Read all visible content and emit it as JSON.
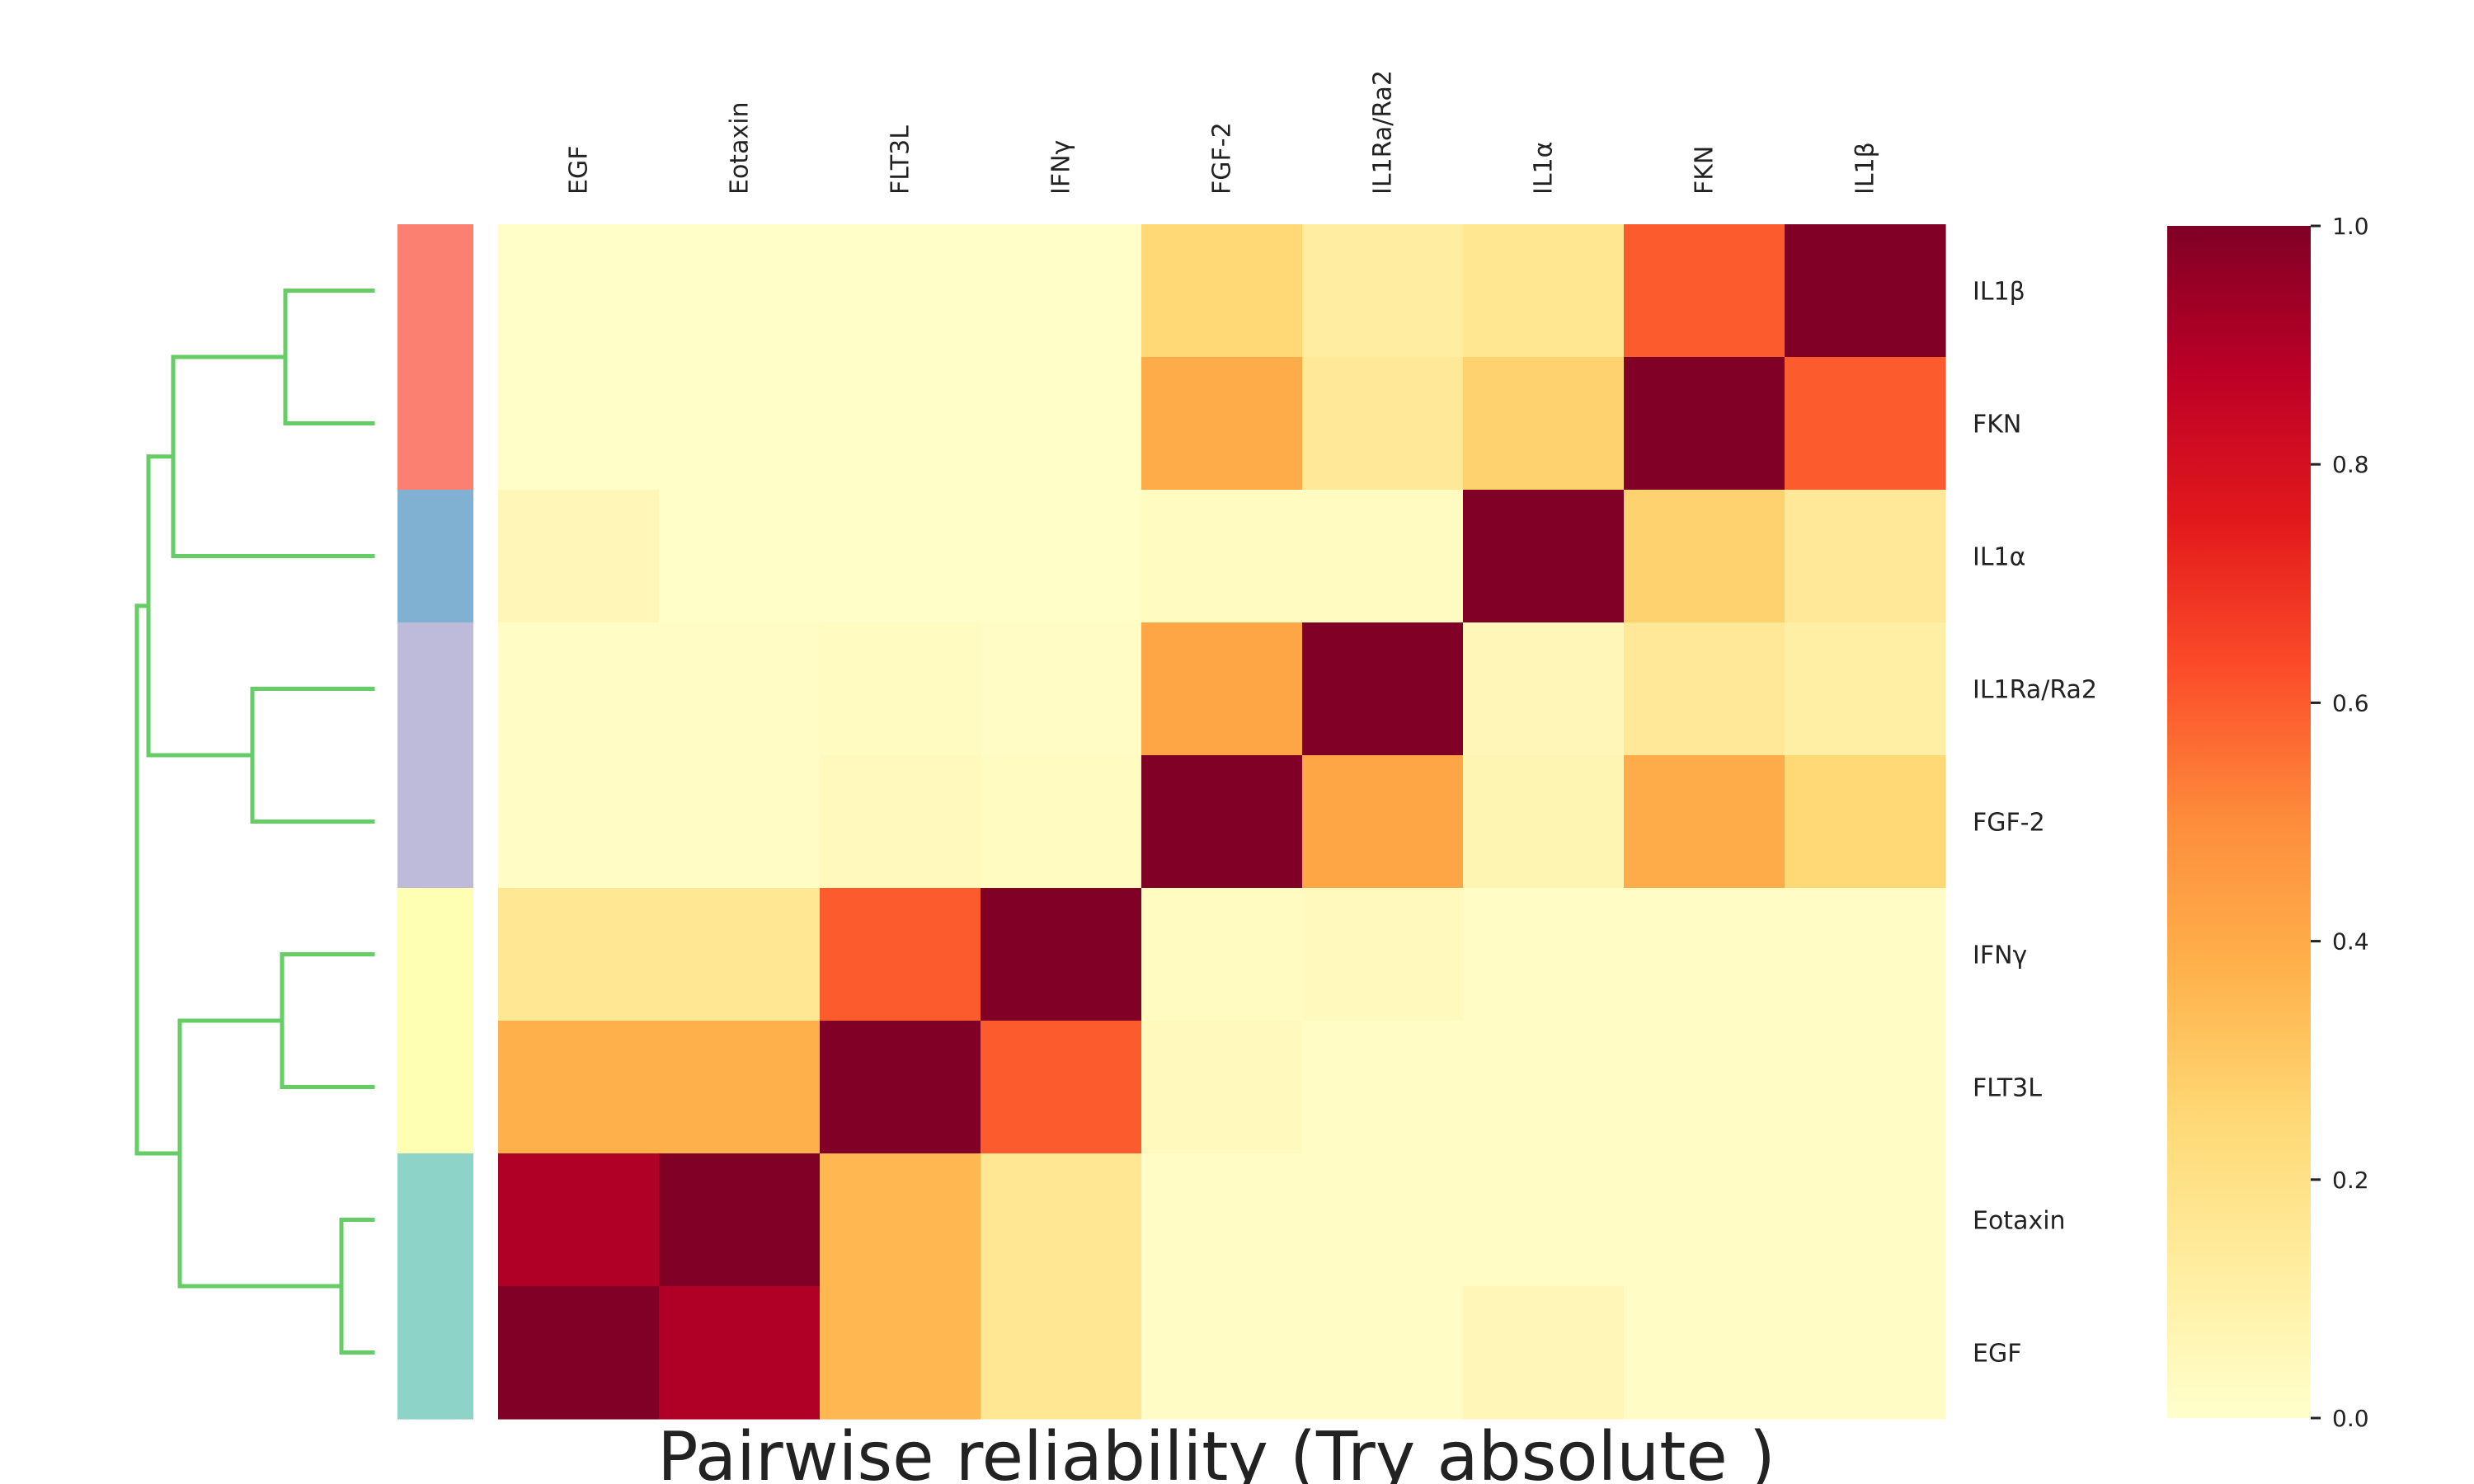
{
  "chart_data": {
    "type": "heatmap",
    "title": "Pairwise reliability (Try  absolute )",
    "columns": [
      "EGF",
      "Eotaxin",
      "FLT3L",
      "IFNγ",
      "FGF-2",
      "IL1Ra/Ra2",
      "IL1α",
      "FKN",
      "IL1β"
    ],
    "rows": [
      "IL1β",
      "FKN",
      "IL1α",
      "IL1Ra/Ra2",
      "FGF-2",
      "IFNγ",
      "FLT3L",
      "Eotaxin",
      "EGF"
    ],
    "values": [
      [
        0.01,
        0.01,
        0.01,
        0.01,
        0.25,
        0.12,
        0.17,
        0.6,
        1.0
      ],
      [
        0.01,
        0.01,
        0.01,
        0.01,
        0.4,
        0.15,
        0.27,
        1.0,
        0.6
      ],
      [
        0.06,
        0.01,
        0.01,
        0.01,
        0.03,
        0.03,
        1.0,
        0.27,
        0.15
      ],
      [
        0.02,
        0.02,
        0.03,
        0.02,
        0.42,
        1.0,
        0.06,
        0.15,
        0.11
      ],
      [
        0.02,
        0.02,
        0.04,
        0.03,
        1.0,
        0.42,
        0.07,
        0.4,
        0.25
      ],
      [
        0.16,
        0.16,
        0.6,
        1.0,
        0.03,
        0.04,
        0.02,
        0.02,
        0.02
      ],
      [
        0.38,
        0.38,
        1.0,
        0.6,
        0.04,
        0.02,
        0.02,
        0.02,
        0.02
      ],
      [
        0.9,
        1.0,
        0.36,
        0.16,
        0.02,
        0.02,
        0.02,
        0.02,
        0.02
      ],
      [
        1.0,
        0.9,
        0.36,
        0.16,
        0.02,
        0.02,
        0.06,
        0.02,
        0.02
      ]
    ],
    "row_group_colors": [
      "#fb8072",
      "#fb8072",
      "#80b1d3",
      "#bebada",
      "#bebada",
      "#ffffb3",
      "#ffffb3",
      "#8dd3c7",
      "#8dd3c7"
    ],
    "colormap": "YlOrRd",
    "colorbar": {
      "vmin": 0.0,
      "vmax": 1.0,
      "ticks": [
        "0.0",
        "0.2",
        "0.4",
        "0.6",
        "0.8",
        "1.0"
      ]
    },
    "dendrogram_color": "#66cc66",
    "dendrogram_side": "left",
    "grid": false,
    "legend": "none"
  }
}
